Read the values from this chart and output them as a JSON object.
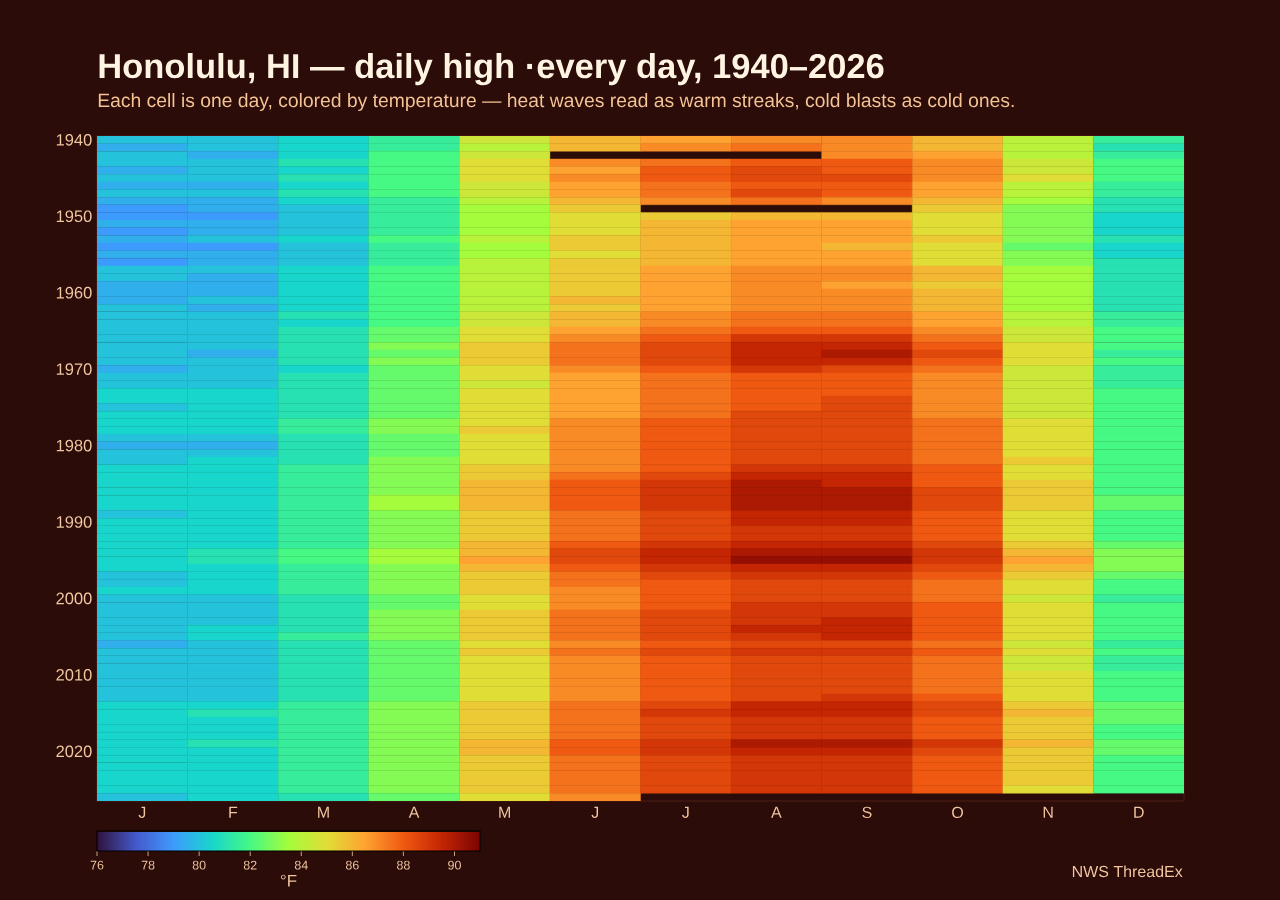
{
  "chart_data": {
    "type": "heatmap",
    "title": "Honolulu, HI — daily high ·every day, 1940–2026",
    "subtitle": "Each cell is one day, colored by temperature — heat waves read as warm streaks, cold blasts as cold ones.",
    "categories": [
      "J",
      "F",
      "M",
      "A",
      "M",
      "J",
      "J",
      "A",
      "S",
      "O",
      "N",
      "D"
    ],
    "y_categories": [
      "1940",
      null,
      null,
      null,
      null,
      null,
      null,
      null,
      null,
      null,
      "1950",
      null,
      null,
      null,
      null,
      null,
      null,
      null,
      null,
      null,
      "1960",
      null,
      null,
      null,
      null,
      null,
      null,
      null,
      null,
      null,
      "1970",
      null,
      null,
      null,
      null,
      null,
      null,
      null,
      null,
      null,
      "1980",
      null,
      null,
      null,
      null,
      null,
      null,
      null,
      null,
      null,
      "1990",
      null,
      null,
      null,
      null,
      null,
      null,
      null,
      null,
      null,
      "2000",
      null,
      null,
      null,
      null,
      null,
      null,
      null,
      null,
      null,
      "2010",
      null,
      null,
      null,
      null,
      null,
      null,
      null,
      null,
      null,
      "2020",
      null,
      null,
      null,
      null,
      null,
      null
    ],
    "cells": [
      [
        80,
        80,
        80.5,
        81.5,
        84.5,
        86,
        86.5,
        87,
        87,
        86,
        84,
        81.5
      ],
      [
        79.5,
        80,
        80.5,
        81.5,
        84,
        86,
        87,
        87.5,
        87,
        86,
        84,
        81
      ],
      [
        80,
        79.5,
        80.5,
        82,
        84.5,
        null,
        null,
        null,
        87,
        86.5,
        84,
        81.5
      ],
      [
        80,
        80,
        81,
        82,
        85,
        87,
        87.5,
        88,
        88,
        87,
        84.5,
        82
      ],
      [
        79.5,
        80,
        80.5,
        82,
        85,
        86.5,
        88,
        88.5,
        88,
        87,
        84.5,
        82
      ],
      [
        80,
        80,
        81,
        82,
        85,
        87,
        88,
        88.5,
        88.5,
        87,
        85,
        82
      ],
      [
        79.5,
        79.5,
        80.5,
        82,
        84.5,
        86.5,
        87.5,
        88,
        88,
        86.5,
        84,
        81.5
      ],
      [
        80,
        80,
        81,
        82,
        84.5,
        86.5,
        87.5,
        88.5,
        88,
        86.5,
        84,
        81.5
      ],
      [
        79.5,
        79.5,
        80.5,
        81.5,
        84,
        86,
        87,
        87.5,
        87,
        86,
        83.5,
        81
      ],
      [
        79,
        79.5,
        80,
        81.5,
        83.5,
        85.5,
        null,
        null,
        null,
        85.5,
        83,
        81
      ],
      [
        79,
        79,
        80,
        81.5,
        83.5,
        85,
        85.5,
        86,
        86,
        85,
        83,
        80.5
      ],
      [
        79.5,
        79.5,
        80,
        81.5,
        83.5,
        85,
        86,
        86.5,
        86.5,
        85,
        83,
        80.5
      ],
      [
        79,
        79.5,
        80,
        81.5,
        83.5,
        85,
        86,
        86.5,
        86.5,
        85,
        83,
        80.5
      ],
      [
        79.5,
        80,
        80.5,
        82,
        84,
        85.5,
        86,
        86.5,
        86.5,
        85.5,
        83,
        81
      ],
      [
        79,
        79,
        80,
        81.5,
        83.5,
        85.5,
        86,
        86.5,
        86,
        85,
        82.5,
        80.5
      ],
      [
        79.5,
        79.5,
        80,
        81.5,
        83.5,
        85,
        86,
        86.5,
        86.5,
        85,
        83,
        80.5
      ],
      [
        79,
        79.5,
        80,
        81.5,
        84,
        85.5,
        86,
        86.5,
        86.5,
        85,
        83,
        81
      ],
      [
        80,
        80,
        80.5,
        82,
        84,
        85.5,
        86.5,
        87,
        87,
        86,
        83.5,
        81
      ],
      [
        80,
        79.5,
        80.5,
        82,
        84,
        85.5,
        86.5,
        87,
        87,
        86,
        83.5,
        81
      ],
      [
        79.5,
        79.5,
        80.5,
        82,
        84,
        85.5,
        86.5,
        87,
        86.5,
        85.5,
        83.5,
        81
      ],
      [
        79.5,
        79.5,
        80.5,
        82,
        84,
        85.5,
        86.5,
        87,
        87,
        86,
        83.5,
        81
      ],
      [
        79.5,
        80,
        80.5,
        82,
        84,
        86,
        86.5,
        87,
        87,
        86,
        83.5,
        81
      ],
      [
        80,
        79.5,
        80.5,
        82,
        84,
        85.5,
        86.5,
        87,
        87,
        86,
        83.5,
        81
      ],
      [
        80,
        80,
        81,
        82,
        84.5,
        86,
        87,
        87.5,
        87.5,
        86.5,
        84,
        81.5
      ],
      [
        80,
        80,
        80.5,
        82,
        84.5,
        86,
        87,
        87.5,
        87.5,
        86.5,
        84,
        81.5
      ],
      [
        80,
        80,
        81,
        82.5,
        85,
        86.5,
        87.5,
        88,
        88,
        87,
        84.5,
        82
      ],
      [
        80,
        80,
        81,
        82.5,
        85,
        87,
        88,
        89,
        89,
        87.5,
        84.5,
        82
      ],
      [
        80,
        80,
        81,
        83,
        85.5,
        87.5,
        88.5,
        89.5,
        89.5,
        88,
        85,
        82
      ],
      [
        80,
        79.5,
        81,
        82.5,
        85.5,
        87.5,
        88.5,
        89.5,
        90,
        88.5,
        85,
        81.5
      ],
      [
        80,
        80,
        81,
        83,
        85.5,
        87.5,
        88.5,
        89.5,
        89.5,
        88,
        85,
        82
      ],
      [
        79.5,
        80,
        80.5,
        82.5,
        85,
        87,
        88,
        89,
        88.5,
        87.5,
        84.5,
        81.5
      ],
      [
        80,
        80,
        81,
        82.5,
        85,
        86.5,
        87.5,
        88,
        88,
        87,
        84.5,
        81.5
      ],
      [
        80,
        80,
        81,
        82.5,
        84.5,
        86.5,
        87.5,
        88,
        88,
        87,
        84.5,
        81.5
      ],
      [
        80.5,
        80.5,
        81,
        82.5,
        85,
        86.5,
        87.5,
        88,
        88,
        87,
        84.5,
        82
      ],
      [
        80.5,
        80.5,
        81,
        82.5,
        85,
        86.5,
        87.5,
        88,
        88.5,
        87,
        84.5,
        82
      ],
      [
        80,
        80.5,
        81,
        82.5,
        85,
        86.5,
        87.5,
        88,
        88.5,
        87,
        84.5,
        82
      ],
      [
        80.5,
        80.5,
        81,
        82.5,
        85,
        86.5,
        87.5,
        88.5,
        88.5,
        87,
        84.5,
        82
      ],
      [
        80.5,
        80.5,
        81.5,
        83,
        85,
        87,
        88,
        88.5,
        88.5,
        87.5,
        85,
        82
      ],
      [
        80.5,
        80.5,
        81.5,
        83,
        85.5,
        87,
        88,
        88.5,
        88.5,
        87.5,
        85,
        82
      ],
      [
        80,
        80,
        81,
        82.5,
        85,
        87,
        88,
        88.5,
        88.5,
        87.5,
        85,
        82
      ],
      [
        79.5,
        79.5,
        81,
        82.5,
        85,
        87,
        88,
        88.5,
        88.5,
        87.5,
        85,
        82
      ],
      [
        80,
        80,
        81,
        82.5,
        85,
        87,
        88,
        88.5,
        88.5,
        87.5,
        85,
        82
      ],
      [
        80,
        80.5,
        81,
        83,
        85,
        87,
        88,
        88.5,
        88.5,
        87.5,
        85.5,
        82
      ],
      [
        80.5,
        80.5,
        81.5,
        83,
        85.5,
        87,
        88,
        89,
        89,
        88,
        85,
        82
      ],
      [
        80.5,
        80.5,
        81.5,
        83,
        85.5,
        87.5,
        88.5,
        89.5,
        89.5,
        88,
        85,
        82
      ],
      [
        80.5,
        80.5,
        81.5,
        83,
        86,
        88,
        89,
        90,
        89.5,
        88,
        85.5,
        82
      ],
      [
        80.5,
        80.5,
        81.5,
        83,
        86,
        88,
        89,
        90,
        90,
        88.5,
        85.5,
        82
      ],
      [
        80.5,
        80.5,
        81.5,
        83.5,
        86,
        88,
        89,
        90,
        90,
        88.5,
        85.5,
        82.5
      ],
      [
        80.5,
        80.5,
        81.5,
        83.5,
        86,
        88,
        89,
        90,
        90,
        88.5,
        85.5,
        82.5
      ],
      [
        80,
        80.5,
        81.5,
        83,
        85.5,
        87.5,
        88.5,
        89.5,
        89.5,
        88,
        85,
        82
      ],
      [
        80.5,
        80.5,
        81.5,
        83,
        85.5,
        87.5,
        88.5,
        89.5,
        89.5,
        88,
        85,
        82
      ],
      [
        80.5,
        80.5,
        81.5,
        83,
        85.5,
        87.5,
        88.5,
        89,
        89,
        88,
        85,
        82
      ],
      [
        80.5,
        80.5,
        81.5,
        83,
        85.5,
        87.5,
        88.5,
        89,
        89,
        88,
        85,
        82
      ],
      [
        80.5,
        80.5,
        81.5,
        83,
        86,
        88,
        89,
        89.5,
        89.5,
        88.5,
        85.5,
        82.5
      ],
      [
        80.5,
        81,
        82,
        83.5,
        86,
        88.5,
        89.5,
        90,
        90,
        89,
        86,
        83
      ],
      [
        80.5,
        81,
        82,
        83.5,
        86.5,
        88.5,
        89.5,
        90.5,
        90.5,
        89,
        86.5,
        83
      ],
      [
        80.5,
        80.5,
        81.5,
        83,
        86,
        88,
        89,
        89.5,
        89.5,
        88.5,
        86,
        83
      ],
      [
        80,
        80.5,
        81.5,
        83,
        85.5,
        87.5,
        88.5,
        89,
        89,
        88,
        85.5,
        82.5
      ],
      [
        80,
        80.5,
        81.5,
        83,
        85.5,
        87.5,
        88,
        88.5,
        88.5,
        87.5,
        85,
        82
      ],
      [
        80.5,
        80.5,
        81.5,
        83,
        85.5,
        87,
        88,
        88.5,
        88.5,
        87.5,
        85,
        82
      ],
      [
        80,
        80,
        81,
        82.5,
        85,
        87,
        88,
        88.5,
        88.5,
        87.5,
        84.5,
        81.5
      ],
      [
        80,
        80,
        81,
        82.5,
        85,
        87,
        88,
        89,
        89,
        88,
        85,
        82
      ],
      [
        80,
        80,
        81,
        83,
        85.5,
        87.5,
        88.5,
        89,
        89,
        88,
        85,
        82
      ],
      [
        80,
        80,
        81,
        83,
        85.5,
        87.5,
        88.5,
        89,
        89.5,
        88,
        85,
        82
      ],
      [
        80,
        80.5,
        81,
        83,
        85.5,
        87.5,
        88.5,
        89.5,
        89.5,
        88,
        85,
        82
      ],
      [
        80,
        80.5,
        81.5,
        83,
        85.5,
        87.5,
        88.5,
        89,
        89.5,
        88,
        85,
        82
      ],
      [
        79.5,
        80,
        81,
        82.5,
        85,
        87,
        88,
        88.5,
        88.5,
        87.5,
        84.5,
        81.5
      ],
      [
        80,
        80,
        81,
        82.5,
        85.5,
        87.5,
        88.5,
        89,
        89,
        88,
        85,
        82
      ],
      [
        80,
        80,
        81,
        82.5,
        85,
        87,
        88,
        88.5,
        88.5,
        87.5,
        84.5,
        81.5
      ],
      [
        80,
        80,
        81,
        82.5,
        85,
        87,
        88,
        88.5,
        88.5,
        87.5,
        84.5,
        81.5
      ],
      [
        80,
        80,
        81,
        82.5,
        85,
        87,
        88,
        88.5,
        88.5,
        87.5,
        85,
        82
      ],
      [
        80,
        80,
        81,
        82.5,
        85,
        87,
        88,
        88.5,
        88.5,
        87.5,
        85,
        82
      ],
      [
        80,
        80,
        81,
        82.5,
        85,
        87,
        88,
        88.5,
        88.5,
        87.5,
        85,
        82
      ],
      [
        80,
        80,
        81,
        82.5,
        85,
        87,
        88,
        88.5,
        89,
        88,
        85,
        82
      ],
      [
        80.5,
        80.5,
        81.5,
        83,
        85.5,
        87.5,
        88.5,
        89.5,
        89.5,
        88.5,
        85.5,
        82.5
      ],
      [
        80.5,
        81,
        81.5,
        83,
        85.5,
        87.5,
        89,
        89.5,
        89.5,
        88.5,
        86,
        82.5
      ],
      [
        80.5,
        80.5,
        81.5,
        83,
        85.5,
        87.5,
        88.5,
        89,
        89,
        88,
        85.5,
        82.5
      ],
      [
        80.5,
        80.5,
        81.5,
        83,
        85.5,
        87.5,
        88.5,
        89,
        89,
        88,
        85.5,
        82
      ],
      [
        80.5,
        80.5,
        81.5,
        83,
        85.5,
        87.5,
        88.5,
        89,
        89,
        88,
        85.5,
        82
      ],
      [
        80.5,
        81,
        81.5,
        83,
        86,
        88,
        89,
        90,
        90,
        89,
        86,
        82.5
      ],
      [
        80.5,
        80.5,
        81.5,
        83,
        86,
        88,
        89,
        89.5,
        89.5,
        88.5,
        85.5,
        82.5
      ],
      [
        80.5,
        80.5,
        81.5,
        83,
        85.5,
        87.5,
        88.5,
        89,
        89,
        88,
        85.5,
        82
      ],
      [
        80.5,
        80.5,
        81.5,
        83,
        85.5,
        87.5,
        88.5,
        89,
        89,
        88,
        85.5,
        82
      ],
      [
        80.5,
        80.5,
        81.5,
        83,
        85.5,
        87.5,
        88.5,
        89,
        89,
        88,
        85.5,
        82
      ],
      [
        80.5,
        80.5,
        81.5,
        83,
        85.5,
        87.5,
        88.5,
        89,
        89,
        88,
        85.5,
        82
      ],
      [
        80.5,
        80.5,
        81.5,
        83,
        85.5,
        87.5,
        88.5,
        89,
        89,
        88,
        85,
        82
      ],
      [
        80,
        80.5,
        81,
        82.5,
        85,
        87,
        null,
        null,
        null,
        null,
        null,
        null
      ]
    ],
    "clim": [
      76,
      91
    ],
    "cticks": [
      76,
      78,
      80,
      82,
      84,
      86,
      88,
      90
    ],
    "clabel": "°F",
    "annotations": [
      "NWS ThreadEx"
    ]
  }
}
